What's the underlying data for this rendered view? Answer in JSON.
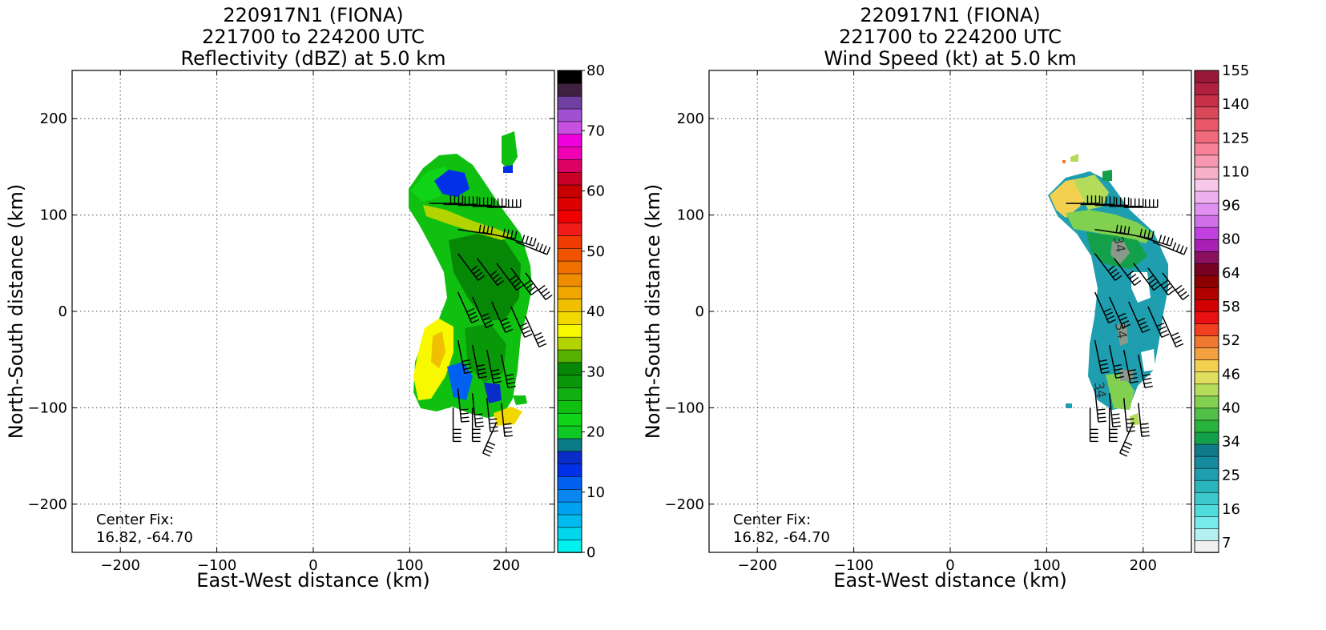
{
  "panels": [
    {
      "title_lines": [
        "220917N1 (FIONA)",
        "221700 to 224200 UTC",
        "Reflectivity (dBZ) at 5.0 km"
      ],
      "xlabel": "East-West distance (km)",
      "ylabel": "North-South distance (km)",
      "center_fix_label": "Center Fix:",
      "center_fix_value": "16.82, -64.70",
      "colorbar": {
        "tick_labels": [
          "0",
          "10",
          "20",
          "30",
          "40",
          "50",
          "60",
          "70",
          "80"
        ],
        "colors": [
          "#00f0f0",
          "#00d6ee",
          "#00bcee",
          "#00a2f0",
          "#0a86f0",
          "#0060f0",
          "#0030e8",
          "#0a2cc8",
          "#0a7a86",
          "#0ec824",
          "#10d418",
          "#10c010",
          "#10b010",
          "#089808",
          "#068806",
          "#56b000",
          "#b4d400",
          "#f8f800",
          "#f0d800",
          "#f0c000",
          "#f0a800",
          "#f08c00",
          "#f07000",
          "#f05400",
          "#f03c00",
          "#f01c1c",
          "#f00000",
          "#dc0000",
          "#c80000",
          "#c80028",
          "#dc0064",
          "#f000b4",
          "#f000dc",
          "#c850e0",
          "#a050d0",
          "#7040a0",
          "#402040",
          "#000000"
        ]
      }
    },
    {
      "title_lines": [
        "220917N1 (FIONA)",
        "221700 to 224200 UTC",
        "Wind Speed (kt) at 5.0 km"
      ],
      "xlabel": "East-West distance (km)",
      "ylabel": "North-South distance (km)",
      "center_fix_label": "Center Fix:",
      "center_fix_value": "16.82, -64.70",
      "contour_labels": [
        "34",
        "34",
        "34"
      ],
      "colorbar": {
        "tick_labels": [
          "7",
          "16",
          "25",
          "34",
          "40",
          "46",
          "52",
          "58",
          "64",
          "80",
          "96",
          "110",
          "125",
          "140",
          "155"
        ],
        "colors": [
          "#f0f0f0",
          "#b4f0f0",
          "#78ecec",
          "#50dcdc",
          "#3cc8cc",
          "#2ab4bc",
          "#1e9eae",
          "#168a9e",
          "#0e7a8a",
          "#14a04a",
          "#28b43c",
          "#50c048",
          "#82d050",
          "#b4dc5a",
          "#e0e060",
          "#f4d050",
          "#f4a040",
          "#f07830",
          "#f04020",
          "#e81010",
          "#d00000",
          "#b00000",
          "#8c0000",
          "#780020",
          "#8c1060",
          "#a820b4",
          "#c040e0",
          "#d070e8",
          "#e090f0",
          "#f0b0f0",
          "#f8c8e8",
          "#f8b0c8",
          "#f898b0",
          "#f88098",
          "#f06a7e",
          "#e85868",
          "#d84858",
          "#c83048",
          "#b02040",
          "#981838"
        ]
      }
    }
  ],
  "chart_data": [
    {
      "type": "heatmap",
      "title": "220917N1 (FIONA) 221700 to 224200 UTC Reflectivity (dBZ) at 5.0 km",
      "variable": "Reflectivity (dBZ)",
      "height_km": 5.0,
      "xlabel": "East-West distance (km)",
      "ylabel": "North-South distance (km)",
      "xlim": [
        -250,
        250
      ],
      "ylim": [
        -250,
        250
      ],
      "xticks": [
        -200,
        -100,
        0,
        100,
        200
      ],
      "yticks": [
        -200,
        -100,
        0,
        100,
        200
      ],
      "grid": true,
      "colorbar_range": [
        0,
        80
      ],
      "colorbar_ticks": [
        0,
        10,
        20,
        30,
        40,
        50,
        60,
        70,
        80
      ],
      "echo_region_extent_km": {
        "x": [
          100,
          225
        ],
        "y": [
          -125,
          185
        ]
      },
      "dominant_value_range_dbz": [
        20,
        30
      ],
      "max_value_approx_dbz": 40,
      "wind_barbs": true,
      "center_fix": [
        16.82,
        -64.7
      ]
    },
    {
      "type": "heatmap",
      "title": "220917N1 (FIONA) 221700 to 224200 UTC Wind Speed (kt) at 5.0 km",
      "variable": "Wind Speed (kt)",
      "height_km": 5.0,
      "xlabel": "East-West distance (km)",
      "ylabel": "North-South distance (km)",
      "xlim": [
        -250,
        250
      ],
      "ylim": [
        -250,
        250
      ],
      "xticks": [
        -200,
        -100,
        0,
        100,
        200
      ],
      "yticks": [
        -200,
        -100,
        0,
        100,
        200
      ],
      "grid": true,
      "colorbar_ticks": [
        7,
        16,
        25,
        34,
        40,
        46,
        52,
        58,
        64,
        80,
        96,
        110,
        125,
        140,
        155
      ],
      "data_region_extent_km": {
        "x": [
          100,
          225
        ],
        "y": [
          -125,
          185
        ]
      },
      "dominant_value_range_kt": [
        25,
        40
      ],
      "max_value_approx_kt": 48,
      "contour_level_kt": 34,
      "wind_barbs": true,
      "center_fix": [
        16.82,
        -64.7
      ]
    }
  ]
}
